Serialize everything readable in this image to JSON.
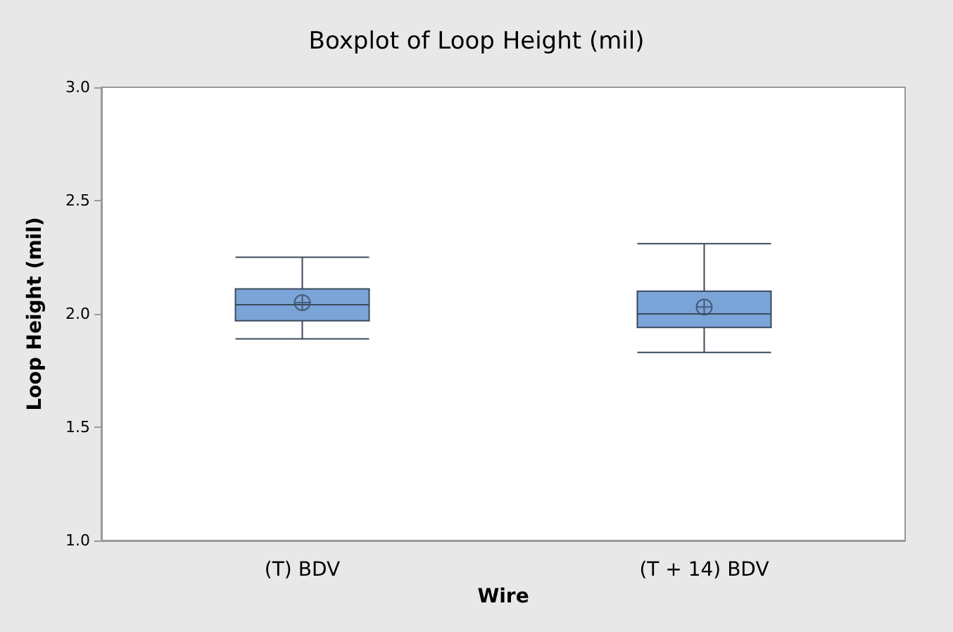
{
  "chart_data": {
    "type": "box",
    "title": "Boxplot of Loop Height (mil)",
    "xlabel": "Wire",
    "ylabel": "Loop Height (mil)",
    "categories": [
      "(T) BDV",
      "(T + 14) BDV"
    ],
    "boxes": [
      {
        "low": 1.89,
        "q1": 1.97,
        "median": 2.04,
        "q3": 2.11,
        "high": 2.25,
        "mean": 2.05
      },
      {
        "low": 1.83,
        "q1": 1.94,
        "median": 2.0,
        "q3": 2.1,
        "high": 2.31,
        "mean": 2.03
      }
    ],
    "color": "#7ba4d8",
    "ylim": [
      1.0,
      3.0
    ],
    "yticks": [
      {
        "value": 1.0,
        "label": "1.0"
      },
      {
        "value": 1.5,
        "label": "1.5"
      },
      {
        "value": 2.0,
        "label": "2.0"
      },
      {
        "value": 2.5,
        "label": "2.5"
      },
      {
        "value": 3.0,
        "label": "3.0"
      }
    ],
    "grid": false
  }
}
